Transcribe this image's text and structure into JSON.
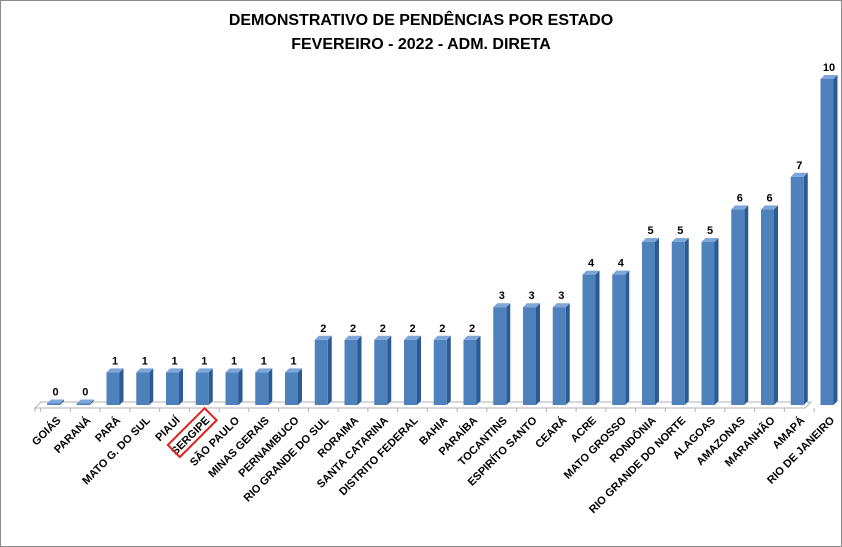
{
  "chart_data": {
    "type": "bar",
    "title": "DEMONSTRATIVO DE PENDÊNCIAS POR ESTADO",
    "subtitle": "FEVEREIRO - 2022 - ADM. DIRETA",
    "categories": [
      "GOIÁS",
      "PARANÁ",
      "PARÁ",
      "MATO G. DO SUL",
      "PIAUÍ",
      "SERGIPE",
      "SÃO PAULO",
      "MINAS GERAIS",
      "PERNAMBUCO",
      "RIO GRANDE DO SUL",
      "RORAIMA",
      "SANTA CATARINA",
      "DISTRITO FEDERAL",
      "BAHIA",
      "PARAÍBA",
      "TOCANTINS",
      "ESPIRÍTO SANTO",
      "CEARÁ",
      "ACRE",
      "MATO GROSSO",
      "RONDÔNIA",
      "RIO GRANDE DO NORTE",
      "ALAGOAS",
      "AMAZONAS",
      "MARANHÃO",
      "AMAPÁ",
      "RIO DE JANEIRO"
    ],
    "values": [
      0,
      0,
      1,
      1,
      1,
      1,
      1,
      1,
      1,
      2,
      2,
      2,
      2,
      2,
      2,
      3,
      3,
      3,
      4,
      4,
      5,
      5,
      5,
      6,
      6,
      7,
      10
    ],
    "ylim": [
      0,
      10
    ],
    "grid": false,
    "legend": "none",
    "highlighted_category": "SERGIPE",
    "colors": {
      "bar": "#4f81bd",
      "bar_dark": "#2c5a93",
      "bar_top": "#7ea6d8",
      "highlight_box": "#e02020",
      "floor": "#b0b0b0"
    }
  }
}
